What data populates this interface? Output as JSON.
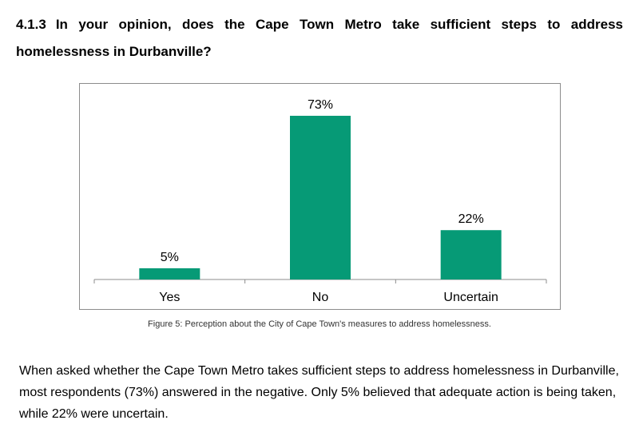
{
  "heading": {
    "number": "4.1.3",
    "question": "In your opinion, does the Cape Town Metro take sufficient steps to address homelessness in Durbanville?"
  },
  "chart_data": {
    "type": "bar",
    "categories": [
      "Yes",
      "No",
      "Uncertain"
    ],
    "values": [
      5,
      73,
      22
    ],
    "data_labels": [
      "5%",
      "73%",
      "22%"
    ],
    "unit": "%",
    "ylim": [
      0,
      73
    ],
    "grid": false,
    "legend": "none",
    "bar_color": "#069a76",
    "title": "",
    "xlabel": "",
    "ylabel": ""
  },
  "caption": "Figure 5: Perception about the City of Cape Town's measures to address homelessness.",
  "body": "When asked whether the Cape Town Metro takes sufficient steps to address homelessness in Durbanville, most respondents (73%) answered in the negative. Only 5% believed that adequate action is being taken, while 22% were uncertain."
}
